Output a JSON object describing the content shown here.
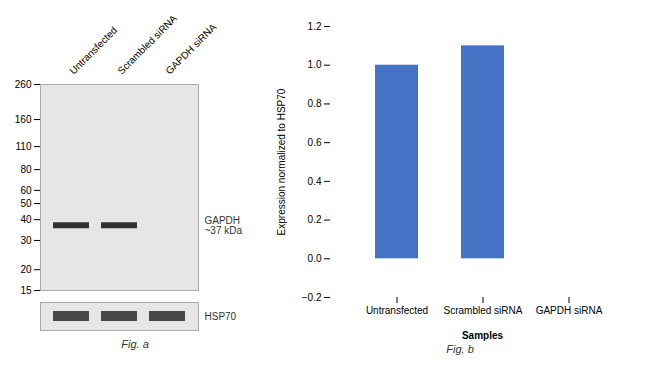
{
  "chart_data": [
    {
      "type": "blot",
      "title": "Fig. a",
      "categories": [
        "Untransfected",
        "Scrambled siRNA",
        "GAPDH siRNA"
      ],
      "series": [
        {
          "name": "GAPDH\n~37 kDa",
          "values": [
            37,
            37,
            null
          ]
        }
      ],
      "log": "y",
      "ylim": [
        15,
        260
      ],
      "yticks": [
        260,
        160,
        110,
        80,
        60,
        50,
        40,
        30,
        20,
        15
      ],
      "annotations": [
        "HSP70"
      ]
    },
    {
      "type": "bar",
      "title": "Fig. b",
      "categories": [
        "Untransfected",
        "Scrambled siRNA",
        "GAPDH siRNA"
      ],
      "values": [
        1.0,
        1.1,
        0.0
      ],
      "color": "#4472c4",
      "xlabel": "Samples",
      "ylabel": "Expression normalized to HSP70",
      "ylim": [
        -0.2,
        1.2
      ],
      "yticks": [
        {
          "value": -0.2,
          "label": "−0.2"
        },
        {
          "value": 0.0,
          "label": "0.0"
        },
        {
          "value": 0.2,
          "label": "0.2"
        },
        {
          "value": 0.4,
          "label": "0.4"
        },
        {
          "value": 0.6,
          "label": "0.6"
        },
        {
          "value": 0.8,
          "label": "0.8"
        },
        {
          "value": 1.0,
          "label": "1.0"
        },
        {
          "value": 1.2,
          "label": "1.2"
        }
      ]
    }
  ]
}
